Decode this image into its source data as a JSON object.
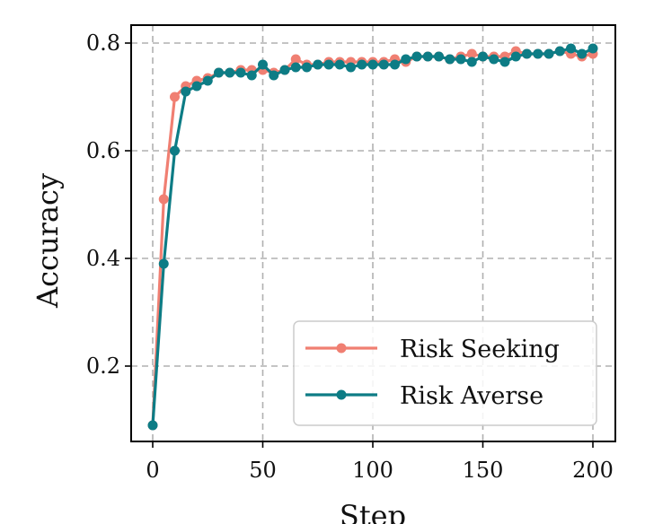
{
  "chart_data": {
    "type": "line",
    "title": "",
    "xlabel": "Step",
    "ylabel": "Accuracy",
    "xlim": [
      -10,
      210
    ],
    "ylim": [
      0.08,
      0.82
    ],
    "xticks": [
      0,
      50,
      100,
      150,
      200
    ],
    "yticks": [
      0.2,
      0.4,
      0.6,
      0.8
    ],
    "xtick_labels": [
      "0",
      "50",
      "100",
      "150",
      "200"
    ],
    "ytick_labels": [
      "0.2",
      "0.4",
      "0.6",
      "0.8"
    ],
    "grid": true,
    "legend_position": "bottom-right",
    "x": [
      0,
      5,
      10,
      15,
      20,
      25,
      30,
      35,
      40,
      45,
      50,
      55,
      60,
      65,
      70,
      75,
      80,
      85,
      90,
      95,
      100,
      105,
      110,
      115,
      120,
      125,
      130,
      135,
      140,
      145,
      150,
      155,
      160,
      165,
      170,
      175,
      180,
      185,
      190,
      195,
      200
    ],
    "series": [
      {
        "name": "Risk Seeking",
        "color": "#f07f72",
        "values": [
          0.09,
          0.51,
          0.7,
          0.72,
          0.73,
          0.735,
          0.745,
          0.745,
          0.75,
          0.75,
          0.75,
          0.745,
          0.75,
          0.77,
          0.76,
          0.76,
          0.765,
          0.765,
          0.765,
          0.765,
          0.765,
          0.765,
          0.77,
          0.765,
          0.775,
          0.775,
          0.775,
          0.77,
          0.775,
          0.78,
          0.775,
          0.775,
          0.775,
          0.785,
          0.78,
          0.78,
          0.78,
          0.785,
          0.78,
          0.775,
          0.78
        ]
      },
      {
        "name": "Risk Averse",
        "color": "#0d7c85",
        "values": [
          0.09,
          0.39,
          0.6,
          0.71,
          0.72,
          0.73,
          0.745,
          0.745,
          0.745,
          0.74,
          0.76,
          0.74,
          0.75,
          0.755,
          0.755,
          0.76,
          0.76,
          0.76,
          0.755,
          0.76,
          0.76,
          0.76,
          0.76,
          0.77,
          0.775,
          0.775,
          0.775,
          0.77,
          0.77,
          0.765,
          0.775,
          0.77,
          0.765,
          0.775,
          0.78,
          0.78,
          0.78,
          0.785,
          0.79,
          0.78,
          0.79
        ]
      }
    ]
  }
}
